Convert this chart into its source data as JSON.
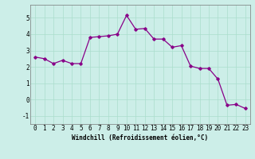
{
  "x": [
    0,
    1,
    2,
    3,
    4,
    5,
    6,
    7,
    8,
    9,
    10,
    11,
    12,
    13,
    14,
    15,
    16,
    17,
    18,
    19,
    20,
    21,
    22,
    23
  ],
  "y": [
    2.6,
    2.5,
    2.2,
    2.4,
    2.2,
    2.2,
    3.8,
    3.85,
    3.9,
    4.0,
    5.15,
    4.3,
    4.35,
    3.7,
    3.7,
    3.2,
    3.3,
    2.05,
    1.9,
    1.9,
    1.25,
    -0.35,
    -0.3,
    -0.55
  ],
  "line_color": "#880088",
  "marker": "D",
  "marker_size": 1.8,
  "line_width": 0.9,
  "bg_color": "#cceee8",
  "grid_color": "#aaddcc",
  "xlabel": "Windchill (Refroidissement éolien,°C)",
  "xlim": [
    -0.5,
    23.5
  ],
  "ylim": [
    -1.5,
    5.8
  ],
  "yticks": [
    -1,
    0,
    1,
    2,
    3,
    4,
    5
  ],
  "xticks": [
    0,
    1,
    2,
    3,
    4,
    5,
    6,
    7,
    8,
    9,
    10,
    11,
    12,
    13,
    14,
    15,
    16,
    17,
    18,
    19,
    20,
    21,
    22,
    23
  ],
  "xlabel_fontsize": 5.5,
  "tick_fontsize": 5.5
}
